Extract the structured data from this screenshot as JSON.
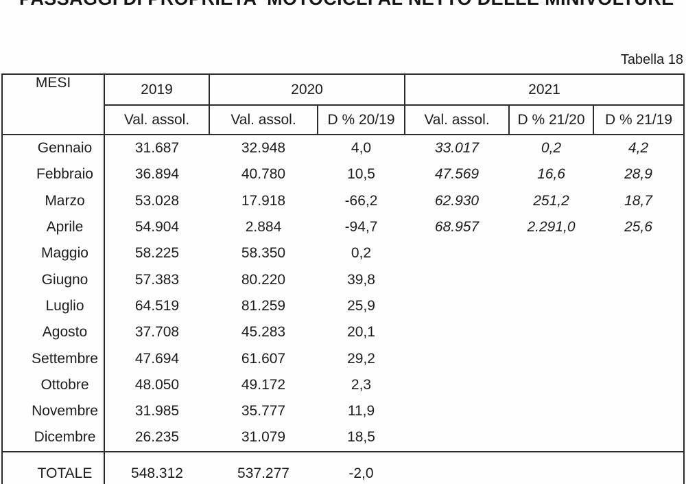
{
  "page": {
    "title": "PASSAGGI DI PROPRIETA' MOTOCICLI AL NETTO DELLE MINIVOLTURE",
    "table_caption": "Tabella 18"
  },
  "table": {
    "month_header": "MESI",
    "groups": [
      {
        "year": "2019",
        "cols": [
          "Val. assol."
        ]
      },
      {
        "year": "2020",
        "cols": [
          "Val. assol.",
          "D % 20/19"
        ]
      },
      {
        "year": "2021",
        "cols": [
          "Val. assol.",
          "D % 21/20",
          "D % 21/19"
        ]
      }
    ],
    "rows": [
      [
        "Gennaio",
        "31.687",
        "32.948",
        "4,0",
        "33.017",
        "0,2",
        "4,2"
      ],
      [
        "Febbraio",
        "36.894",
        "40.780",
        "10,5",
        "47.569",
        "16,6",
        "28,9"
      ],
      [
        "Marzo",
        "53.028",
        "17.918",
        "-66,2",
        "62.930",
        "251,2",
        "18,7"
      ],
      [
        "Aprile",
        "54.904",
        "2.884",
        "-94,7",
        "68.957",
        "2.291,0",
        "25,6"
      ],
      [
        "Maggio",
        "58.225",
        "58.350",
        "0,2",
        "",
        "",
        ""
      ],
      [
        "Giugno",
        "57.383",
        "80.220",
        "39,8",
        "",
        "",
        ""
      ],
      [
        "Luglio",
        "64.519",
        "81.259",
        "25,9",
        "",
        "",
        ""
      ],
      [
        "Agosto",
        "37.708",
        "45.283",
        "20,1",
        "",
        "",
        ""
      ],
      [
        "Settembre",
        "47.694",
        "61.607",
        "29,2",
        "",
        "",
        ""
      ],
      [
        "Ottobre",
        "48.050",
        "49.172",
        "2,3",
        "",
        "",
        ""
      ],
      [
        "Novembre",
        "31.985",
        "35.777",
        "11,9",
        "",
        "",
        ""
      ],
      [
        "Dicembre",
        "26.235",
        "31.079",
        "18,5",
        "",
        "",
        ""
      ]
    ],
    "total_row": [
      "TOTALE",
      "548.312",
      "537.277",
      "-2,0",
      "",
      "",
      ""
    ]
  }
}
